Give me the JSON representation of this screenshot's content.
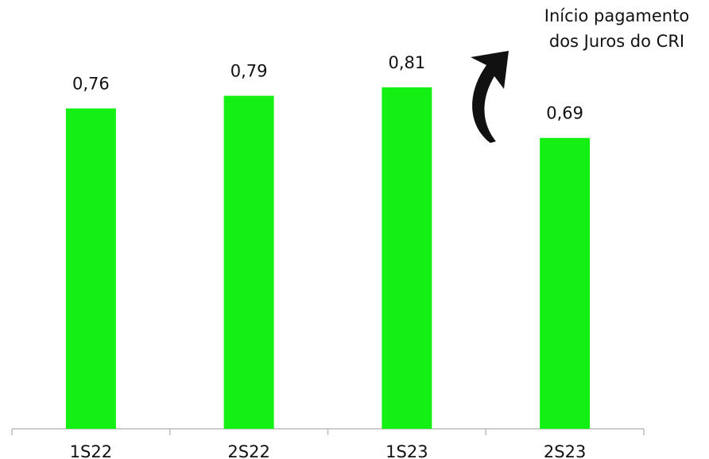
{
  "chart_data": {
    "type": "bar",
    "categories": [
      "1S22",
      "2S22",
      "1S23",
      "2S23"
    ],
    "values": [
      0.76,
      0.79,
      0.81,
      0.69
    ],
    "value_labels": [
      "0,76",
      "0,79",
      "0,81",
      "0,69"
    ],
    "color": "#14f014",
    "annotation": [
      "Início pagamento",
      "dos Juros do CRI"
    ]
  }
}
